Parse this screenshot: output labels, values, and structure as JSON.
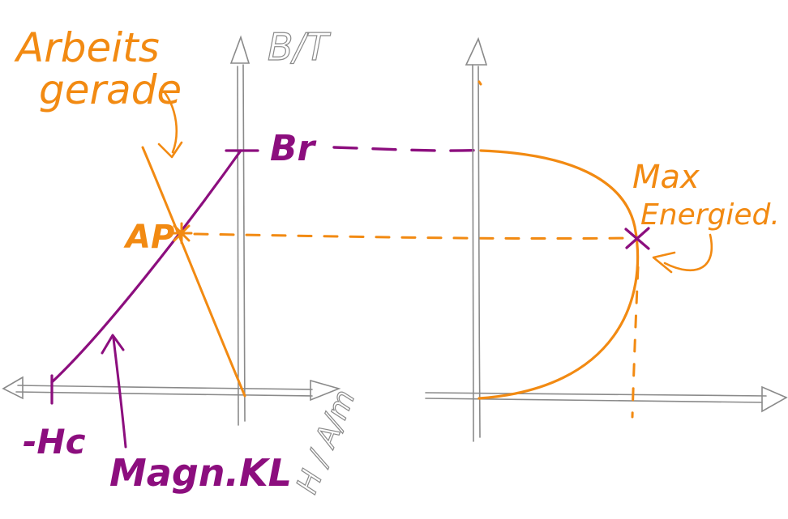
{
  "colors": {
    "orange": "#f28a12",
    "purple": "#8c0e7e",
    "axis": "#8a8a8a"
  },
  "labels": {
    "arbeits_line1": "Arbeits",
    "arbeits_line2": "gerade",
    "ap": "AP",
    "br": "Br",
    "minus_hc": "-Hc",
    "magn_kl": "Magn.KL",
    "max_line1": "Max",
    "max_line2": "Energied.",
    "y_axis_left": "B/T",
    "x_axis_left": "H / A/m"
  }
}
